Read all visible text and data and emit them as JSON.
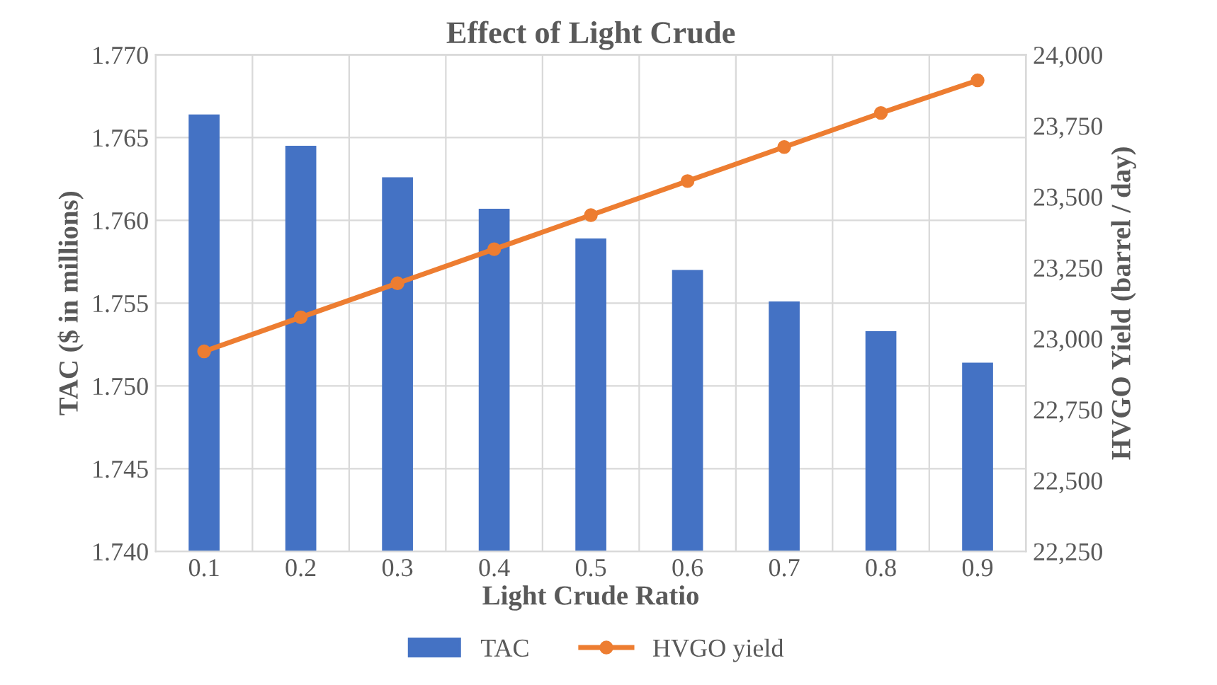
{
  "chart_data": {
    "type": "bar",
    "title": "Effect of Light Crude",
    "xlabel": "Light Crude Ratio",
    "ylabel": "TAC ($ in millions)",
    "y2label": "HVGO Yield (barrel / day)",
    "categories": [
      "0.1",
      "0.2",
      "0.3",
      "0.4",
      "0.5",
      "0.6",
      "0.7",
      "0.8",
      "0.9"
    ],
    "series": [
      {
        "name": "TAC",
        "color": "#4472c4",
        "values": [
          1.7664,
          1.7645,
          1.7626,
          1.7607,
          1.7589,
          1.757,
          1.7551,
          1.7533,
          1.7514
        ]
      },
      {
        "name": "HVGO yield",
        "type": "line",
        "axis": "y2",
        "color": "#ed7d31",
        "marker": "circle",
        "values": [
          22955,
          23075,
          23195,
          23315,
          23435,
          23555,
          23675,
          23795,
          23910
        ]
      }
    ],
    "ylim": [
      1.74,
      1.77
    ],
    "yticks": [
      {
        "value": 1.74,
        "label": "1.740"
      },
      {
        "value": 1.745,
        "label": "1.745"
      },
      {
        "value": 1.75,
        "label": "1.750"
      },
      {
        "value": 1.755,
        "label": "1.755"
      },
      {
        "value": 1.76,
        "label": "1.760"
      },
      {
        "value": 1.765,
        "label": "1.765"
      },
      {
        "value": 1.77,
        "label": "1.770"
      }
    ],
    "y2lim": [
      22250,
      24000
    ],
    "y2ticks": [
      {
        "value": 22250,
        "label": "22,250"
      },
      {
        "value": 22500,
        "label": "22,500"
      },
      {
        "value": 22750,
        "label": "22,750"
      },
      {
        "value": 23000,
        "label": "23,000"
      },
      {
        "value": 23250,
        "label": "23,250"
      },
      {
        "value": 23500,
        "label": "23,500"
      },
      {
        "value": 23750,
        "label": "23,750"
      },
      {
        "value": 24000,
        "label": "24,000"
      }
    ],
    "grid": true,
    "legend": "bottom"
  }
}
